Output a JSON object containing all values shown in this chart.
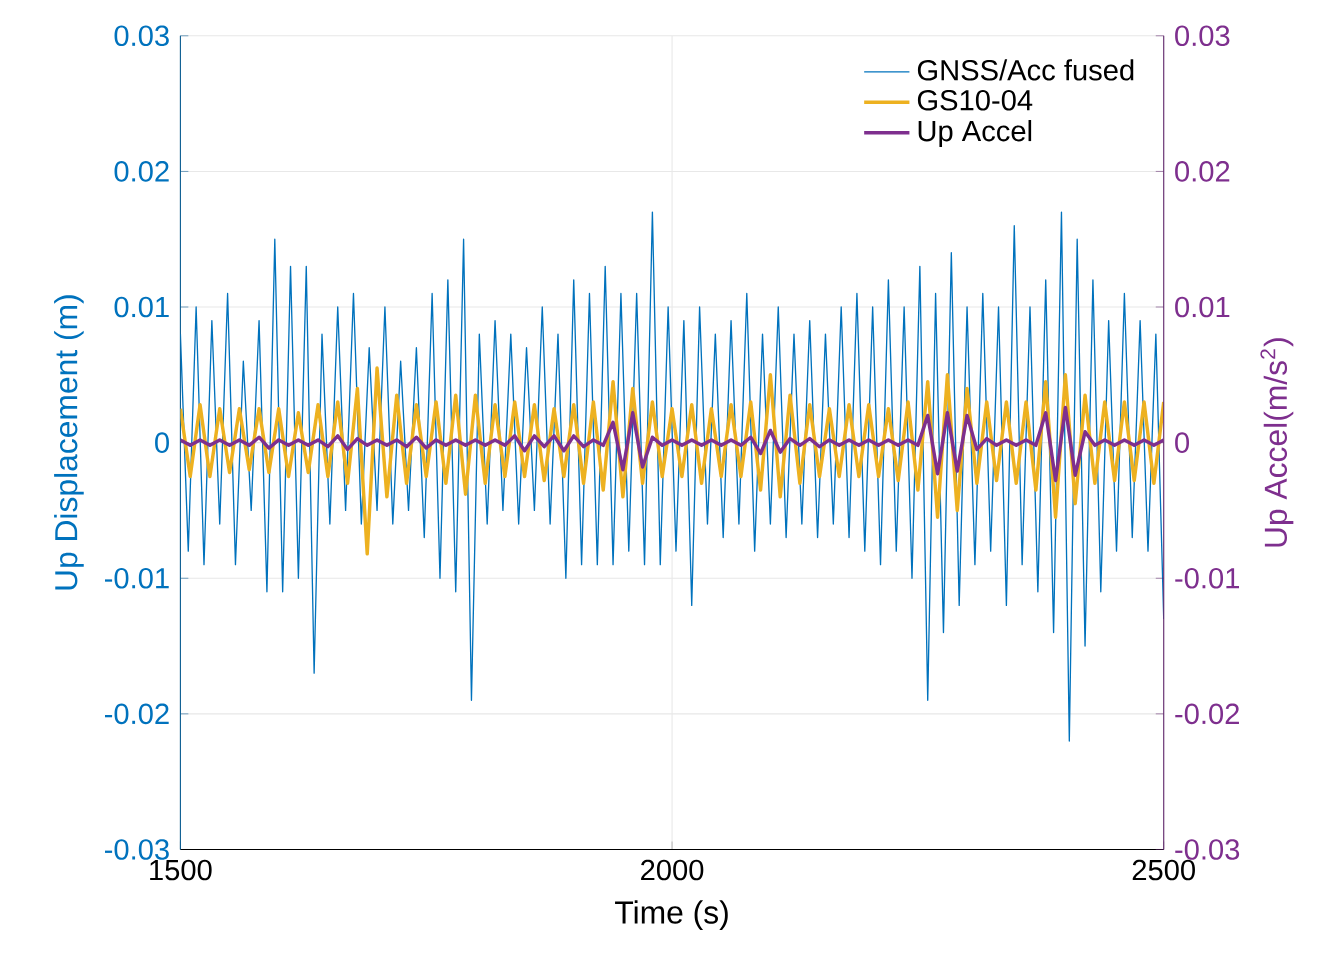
{
  "chart_data": {
    "type": "line",
    "xlabel": "Time (s)",
    "ylabel": "Up Displacement (m)",
    "y2label": "Up Accel(m/s$^{2}$)",
    "xlim": [
      1500,
      2500
    ],
    "xticks": [
      1500,
      2000,
      2500
    ],
    "ylim": [
      -0.03,
      0.03
    ],
    "yticks": [
      -0.03,
      -0.02,
      -0.01,
      0,
      0.01,
      0.02,
      0.03
    ],
    "y2lim": [
      -0.03,
      0.03
    ],
    "y2ticks": [
      -0.03,
      -0.02,
      -0.01,
      0,
      0.01,
      0.02,
      0.03
    ],
    "grid": true,
    "legend": "top right",
    "marker": "none",
    "line_style": "solid",
    "x": [
      1500,
      1510,
      1520,
      1530,
      1540,
      1550,
      1560,
      1570,
      1580,
      1590,
      1600,
      1610,
      1620,
      1630,
      1640,
      1650,
      1660,
      1670,
      1680,
      1690,
      1700,
      1710,
      1720,
      1730,
      1740,
      1750,
      1760,
      1770,
      1780,
      1790,
      1800,
      1810,
      1820,
      1830,
      1840,
      1850,
      1860,
      1870,
      1880,
      1890,
      1900,
      1910,
      1920,
      1930,
      1940,
      1950,
      1960,
      1970,
      1980,
      1990,
      2000,
      2010,
      2020,
      2030,
      2040,
      2050,
      2060,
      2070,
      2080,
      2090,
      2100,
      2110,
      2120,
      2130,
      2140,
      2150,
      2160,
      2170,
      2180,
      2190,
      2200,
      2210,
      2220,
      2230,
      2240,
      2250,
      2260,
      2270,
      2280,
      2290,
      2300,
      2310,
      2320,
      2330,
      2340,
      2350,
      2360,
      2370,
      2380,
      2390,
      2400,
      2410,
      2420,
      2430,
      2440,
      2450,
      2460,
      2470,
      2480,
      2490,
      2500
    ],
    "series": [
      {
        "name": "GNSS/Acc fused",
        "color": "#0072bd",
        "x": [
          1500,
          1508,
          1516,
          1524,
          1532,
          1540,
          1548,
          1556,
          1564,
          1572,
          1580,
          1588,
          1596,
          1604,
          1612,
          1620,
          1628,
          1636,
          1644,
          1652,
          1660,
          1668,
          1676,
          1684,
          1692,
          1700,
          1708,
          1716,
          1724,
          1732,
          1740,
          1748,
          1756,
          1764,
          1772,
          1780,
          1788,
          1796,
          1804,
          1812,
          1820,
          1828,
          1836,
          1844,
          1852,
          1860,
          1868,
          1876,
          1884,
          1892,
          1900,
          1908,
          1916,
          1924,
          1932,
          1940,
          1948,
          1956,
          1964,
          1972,
          1980,
          1988,
          1996,
          2004,
          2012,
          2020,
          2028,
          2036,
          2044,
          2052,
          2060,
          2068,
          2076,
          2084,
          2092,
          2100,
          2108,
          2116,
          2124,
          2132,
          2140,
          2148,
          2156,
          2164,
          2172,
          2180,
          2188,
          2196,
          2204,
          2212,
          2220,
          2228,
          2236,
          2244,
          2252,
          2260,
          2268,
          2276,
          2284,
          2292,
          2300,
          2308,
          2316,
          2324,
          2332,
          2340,
          2348,
          2356,
          2364,
          2372,
          2380,
          2388,
          2396,
          2404,
          2412,
          2420,
          2428,
          2436,
          2444,
          2452,
          2460,
          2468,
          2476,
          2484,
          2492,
          2500
        ],
        "values": [
          0.008,
          -0.008,
          0.01,
          -0.009,
          0.009,
          -0.006,
          0.011,
          -0.009,
          0.006,
          -0.005,
          0.009,
          -0.011,
          0.015,
          -0.011,
          0.013,
          -0.01,
          0.013,
          -0.017,
          0.008,
          -0.006,
          0.01,
          -0.005,
          0.011,
          -0.006,
          0.007,
          -0.005,
          0.01,
          -0.006,
          0.006,
          -0.005,
          0.007,
          -0.007,
          0.011,
          -0.01,
          0.012,
          -0.011,
          0.015,
          -0.019,
          0.008,
          -0.006,
          0.009,
          -0.005,
          0.008,
          -0.006,
          0.007,
          -0.005,
          0.01,
          -0.006,
          0.008,
          -0.01,
          0.012,
          -0.009,
          0.011,
          -0.009,
          0.013,
          -0.009,
          0.011,
          -0.008,
          0.011,
          -0.009,
          0.017,
          -0.009,
          0.01,
          -0.008,
          0.009,
          -0.012,
          0.01,
          -0.006,
          0.008,
          -0.007,
          0.009,
          -0.006,
          0.011,
          -0.008,
          0.008,
          -0.006,
          0.01,
          -0.007,
          0.008,
          -0.006,
          0.009,
          -0.007,
          0.008,
          -0.006,
          0.01,
          -0.007,
          0.011,
          -0.008,
          0.01,
          -0.009,
          0.012,
          -0.008,
          0.01,
          -0.01,
          0.013,
          -0.019,
          0.011,
          -0.014,
          0.014,
          -0.012,
          0.01,
          -0.009,
          0.011,
          -0.008,
          0.01,
          -0.012,
          0.016,
          -0.009,
          0.01,
          -0.011,
          0.012,
          -0.014,
          0.017,
          -0.022,
          0.015,
          -0.015,
          0.012,
          -0.011,
          0.009,
          -0.008,
          0.011,
          -0.007,
          0.009,
          -0.008,
          0.008,
          -0.013
        ]
      },
      {
        "name": "GS10-04",
        "color": "#edb120",
        "values": [
          0.0025,
          -0.0025,
          0.0028,
          -0.0025,
          0.0025,
          -0.0022,
          0.0025,
          -0.002,
          0.0025,
          -0.0022,
          0.0025,
          -0.0025,
          0.0022,
          -0.0022,
          0.0028,
          -0.0025,
          0.003,
          -0.003,
          0.004,
          -0.0082,
          0.0055,
          -0.004,
          0.0035,
          -0.003,
          0.0028,
          -0.0025,
          0.003,
          -0.003,
          0.0035,
          -0.0038,
          0.0035,
          -0.003,
          0.0028,
          -0.0025,
          0.003,
          -0.0025,
          0.0028,
          -0.0028,
          0.0025,
          -0.0025,
          0.0028,
          -0.003,
          0.003,
          -0.0035,
          0.0045,
          -0.004,
          0.004,
          -0.003,
          0.003,
          -0.0025,
          0.0025,
          -0.0025,
          0.0028,
          -0.003,
          0.0025,
          -0.0025,
          0.0028,
          -0.0025,
          0.003,
          -0.0035,
          0.005,
          -0.004,
          0.0035,
          -0.003,
          0.0028,
          -0.0025,
          0.0025,
          -0.0025,
          0.0028,
          -0.0025,
          0.0028,
          -0.0025,
          0.0025,
          -0.0028,
          0.003,
          -0.0035,
          0.0045,
          -0.0055,
          0.005,
          -0.005,
          0.004,
          -0.003,
          0.003,
          -0.0028,
          0.003,
          -0.003,
          0.003,
          -0.0035,
          0.0045,
          -0.0055,
          0.005,
          -0.0045,
          0.0035,
          -0.003,
          0.003,
          -0.0028,
          0.003,
          -0.0028,
          0.003,
          -0.003,
          0.003
        ]
      },
      {
        "name": "Up Accel",
        "color": "#7e2f8e",
        "axis": "y2",
        "values": [
          0.0002,
          -0.0002,
          0.0002,
          -0.0002,
          0.0002,
          -0.0002,
          0.0002,
          -0.0002,
          0.0004,
          -0.0004,
          0.0002,
          -0.0002,
          0.0002,
          -0.0002,
          0.0002,
          -0.0003,
          0.0005,
          -0.0005,
          0.0003,
          -0.0002,
          0.0002,
          -0.0002,
          0.0002,
          -0.0003,
          0.0004,
          -0.0004,
          0.0002,
          -0.0002,
          0.0002,
          -0.0002,
          0.0002,
          -0.0002,
          0.0002,
          -0.0002,
          0.0005,
          -0.0006,
          0.0005,
          -0.0003,
          0.0005,
          -0.0006,
          0.0005,
          -0.0003,
          0.0002,
          -0.0002,
          0.0015,
          -0.002,
          0.0022,
          -0.0018,
          0.0004,
          -0.0002,
          0.0002,
          -0.0002,
          0.0002,
          -0.0002,
          0.0002,
          -0.0002,
          0.0002,
          -0.0002,
          0.0004,
          -0.0008,
          0.0009,
          -0.0007,
          0.0003,
          -0.0002,
          0.0003,
          -0.0003,
          0.0002,
          -0.0002,
          0.0002,
          -0.0002,
          0.0002,
          -0.0002,
          0.0002,
          -0.0002,
          0.0002,
          -0.0002,
          0.002,
          -0.0023,
          0.0022,
          -0.0021,
          0.002,
          -0.0005,
          0.0003,
          -0.0002,
          0.0002,
          -0.0002,
          0.0002,
          -0.0002,
          0.0022,
          -0.0028,
          0.0026,
          -0.0024,
          0.0008,
          -0.0002,
          0.0002,
          -0.0002,
          0.0002,
          -0.0002,
          0.0002,
          -0.0002,
          0.0002
        ]
      }
    ]
  }
}
